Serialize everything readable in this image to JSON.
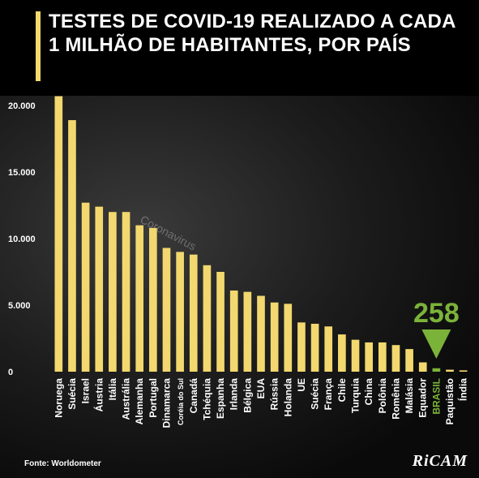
{
  "title": "TESTES DE COVID-19 REALIZADO A CADA 1 MILHÃO DE HABITANTES, POR PAÍS",
  "source": "Fonte: Worldometer",
  "logo": "RiCAM",
  "watermark": "Coronavirus",
  "colors": {
    "bar": "#f2d86e",
    "highlight": "#7bb339",
    "text": "#ffffff",
    "background": "#000000"
  },
  "chart_data": {
    "type": "bar",
    "title": "TESTES DE COVID-19 REALIZADO A CADA 1 MILHÃO DE HABITANTES, POR PAÍS",
    "xlabel": "",
    "ylabel": "",
    "ylim": [
      0,
      20000
    ],
    "yticks": [
      0,
      5000,
      10000,
      15000,
      20000
    ],
    "ytick_labels": [
      "0",
      "5.000",
      "10.000",
      "15.000",
      "20.000"
    ],
    "grid": false,
    "categories": [
      "Noruega",
      "Suécia",
      "Israel",
      "Áustria",
      "Itália",
      "Austrália",
      "Alemanha",
      "Portugal",
      "Dinamarca",
      "Coréia do Sul",
      "Canadá",
      "Tchéquia",
      "Espanha",
      "Irlanda",
      "Bélgica",
      "EUA",
      "Rússia",
      "Holanda",
      "UE",
      "Suécia",
      "França",
      "Chile",
      "Turquia",
      "China",
      "Polônia",
      "Romênia",
      "Malásia",
      "Equador",
      "BRASIL",
      "Paquistão",
      "Índia"
    ],
    "values": [
      20700,
      18900,
      12700,
      12400,
      12000,
      12000,
      11000,
      10800,
      9300,
      9000,
      8800,
      8000,
      7500,
      6100,
      6000,
      5700,
      5200,
      5100,
      3700,
      3600,
      3400,
      2800,
      2400,
      2200,
      2200,
      2000,
      1700,
      700,
      258,
      150,
      100
    ],
    "highlight_category": "BRASIL",
    "annotation": "258"
  }
}
